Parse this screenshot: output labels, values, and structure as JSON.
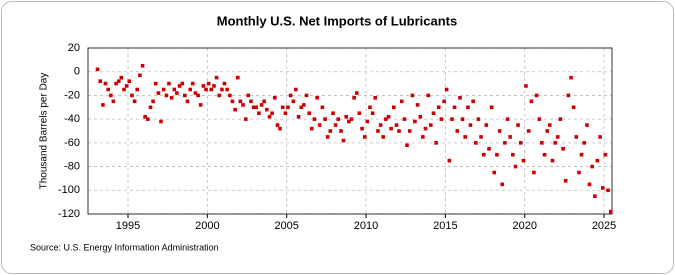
{
  "chart_data": {
    "type": "scatter",
    "title": "Monthly U.S. Net Imports of Lubricants",
    "ylabel": "Thousand Barrels per Day",
    "source": "Source: U.S. Energy Information Administration",
    "color": "#cc0000",
    "grid": true,
    "xlim": [
      1992.48,
      2025.5
    ],
    "xticks": [
      1995,
      2000,
      2005,
      2010,
      2015,
      2020,
      2025
    ],
    "ylim": [
      -120,
      20
    ],
    "yticks": [
      -120,
      -100,
      -80,
      -60,
      -40,
      -20,
      0,
      20
    ],
    "x": [
      1993.08,
      1993.25,
      1993.42,
      1993.58,
      1993.75,
      1993.92,
      1994.08,
      1994.25,
      1994.42,
      1994.58,
      1994.75,
      1994.92,
      1995.08,
      1995.25,
      1995.42,
      1995.58,
      1995.75,
      1995.92,
      1996.08,
      1996.25,
      1996.42,
      1996.58,
      1996.75,
      1996.92,
      1997.08,
      1997.25,
      1997.42,
      1997.58,
      1997.75,
      1997.92,
      1998.08,
      1998.25,
      1998.42,
      1998.58,
      1998.75,
      1998.92,
      1999.08,
      1999.25,
      1999.42,
      1999.58,
      1999.75,
      1999.92,
      2000.08,
      2000.25,
      2000.42,
      2000.58,
      2000.75,
      2000.92,
      2001.08,
      2001.25,
      2001.42,
      2001.58,
      2001.75,
      2001.92,
      2002.08,
      2002.25,
      2002.42,
      2002.58,
      2002.75,
      2002.92,
      2003.08,
      2003.25,
      2003.42,
      2003.58,
      2003.75,
      2003.92,
      2004.08,
      2004.25,
      2004.42,
      2004.58,
      2004.75,
      2004.92,
      2005.08,
      2005.25,
      2005.42,
      2005.58,
      2005.75,
      2005.92,
      2006.08,
      2006.25,
      2006.42,
      2006.58,
      2006.75,
      2006.92,
      2007.08,
      2007.25,
      2007.42,
      2007.58,
      2007.75,
      2007.92,
      2008.08,
      2008.25,
      2008.42,
      2008.58,
      2008.75,
      2008.92,
      2009.08,
      2009.25,
      2009.42,
      2009.58,
      2009.75,
      2009.92,
      2010.08,
      2010.25,
      2010.42,
      2010.58,
      2010.75,
      2010.92,
      2011.08,
      2011.25,
      2011.42,
      2011.58,
      2011.75,
      2011.92,
      2012.08,
      2012.25,
      2012.42,
      2012.58,
      2012.75,
      2012.92,
      2013.08,
      2013.25,
      2013.42,
      2013.58,
      2013.75,
      2013.92,
      2014.08,
      2014.25,
      2014.42,
      2014.58,
      2014.75,
      2014.92,
      2015.08,
      2015.25,
      2015.42,
      2015.58,
      2015.75,
      2015.92,
      2016.08,
      2016.25,
      2016.42,
      2016.58,
      2016.75,
      2016.92,
      2017.08,
      2017.25,
      2017.42,
      2017.58,
      2017.75,
      2017.92,
      2018.08,
      2018.25,
      2018.42,
      2018.58,
      2018.75,
      2018.92,
      2019.08,
      2019.25,
      2019.42,
      2019.58,
      2019.75,
      2019.92,
      2020.08,
      2020.25,
      2020.42,
      2020.58,
      2020.75,
      2020.92,
      2021.08,
      2021.25,
      2021.42,
      2021.58,
      2021.75,
      2021.92,
      2022.08,
      2022.25,
      2022.42,
      2022.58,
      2022.75,
      2022.92,
      2023.08,
      2023.25,
      2023.42,
      2023.58,
      2023.75,
      2023.92,
      2024.08,
      2024.25,
      2024.42,
      2024.58,
      2024.75,
      2024.92,
      2025.08,
      2025.25,
      2025.42
    ],
    "values": [
      2,
      -8,
      -28,
      -10,
      -15,
      -20,
      -25,
      -10,
      -8,
      -5,
      -15,
      -12,
      -8,
      -20,
      -25,
      -15,
      -3,
      5,
      -38,
      -40,
      -30,
      -25,
      -10,
      -18,
      -42,
      -15,
      -20,
      -10,
      -22,
      -15,
      -18,
      -12,
      -10,
      -20,
      -25,
      -15,
      -10,
      -18,
      -20,
      -28,
      -12,
      -15,
      -10,
      -15,
      -12,
      -5,
      -20,
      -15,
      -10,
      -15,
      -20,
      -25,
      -32,
      -5,
      -25,
      -28,
      -40,
      -20,
      -25,
      -30,
      -30,
      -35,
      -28,
      -25,
      -32,
      -38,
      -35,
      -22,
      -45,
      -48,
      -30,
      -35,
      -30,
      -20,
      -25,
      -15,
      -38,
      -30,
      -28,
      -20,
      -35,
      -48,
      -40,
      -22,
      -45,
      -30,
      -40,
      -55,
      -50,
      -35,
      -45,
      -40,
      -50,
      -58,
      -38,
      -42,
      -40,
      -22,
      -18,
      -35,
      -48,
      -55,
      -42,
      -30,
      -35,
      -22,
      -50,
      -45,
      -55,
      -40,
      -38,
      -48,
      -30,
      -45,
      -50,
      -25,
      -40,
      -62,
      -50,
      -20,
      -42,
      -28,
      -38,
      -55,
      -48,
      -20,
      -45,
      -35,
      -60,
      -30,
      -40,
      -25,
      -15,
      -75,
      -40,
      -30,
      -50,
      -22,
      -40,
      -55,
      -30,
      -45,
      -25,
      -60,
      -40,
      -55,
      -70,
      -45,
      -65,
      -30,
      -85,
      -70,
      -50,
      -95,
      -60,
      -40,
      -55,
      -70,
      -80,
      -45,
      -60,
      -75,
      -12,
      -50,
      -25,
      -85,
      -20,
      -40,
      -60,
      -70,
      -50,
      -45,
      -75,
      -60,
      -55,
      -40,
      -65,
      -92,
      -20,
      -5,
      -30,
      -55,
      -85,
      -70,
      -60,
      -45,
      -95,
      -80,
      -105,
      -75,
      -55,
      -98,
      -70,
      -100,
      -118
    ]
  }
}
